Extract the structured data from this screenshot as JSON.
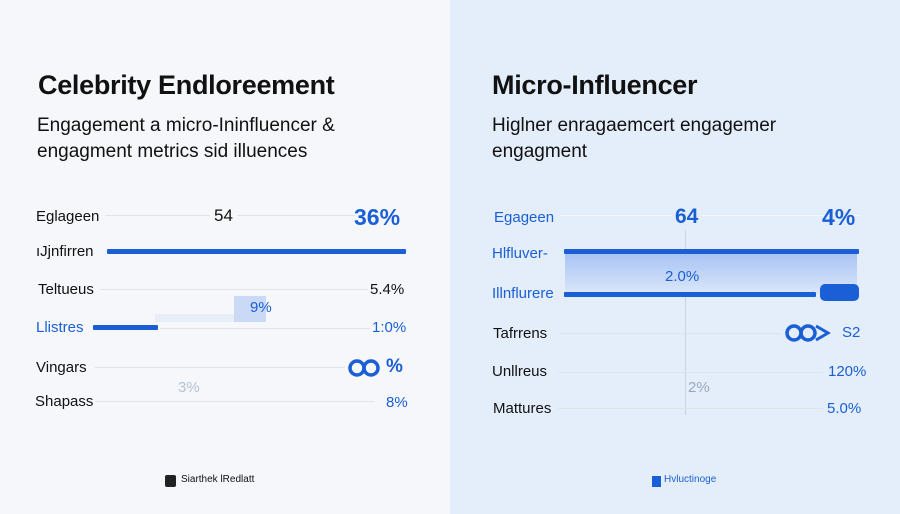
{
  "left": {
    "title": "Celebrity Endloreement",
    "subtitle_1": "Engagement a micro-Ininfluencer  &",
    "subtitle_2": "engagment metrics sid illuences",
    "rows": [
      {
        "label": "Eglageen",
        "mid": "54",
        "value": "36%"
      },
      {
        "label": "ıJjnfirren"
      },
      {
        "label": "Teltueus",
        "value": "5.4%"
      },
      {
        "label": "Llistres",
        "value": "1:0%",
        "bar_fraction": 0.2
      },
      {
        "label": "Vingars",
        "value": "%"
      },
      {
        "label": "Shapass",
        "value": "8%"
      }
    ],
    "floating_1": "9%",
    "floating_2": "3%",
    "footer": "Siarthek lRedlatt"
  },
  "right": {
    "title": "Micro-Influencer",
    "subtitle_1": "Higlner enragaemcert  engagemer",
    "subtitle_2": "engagment",
    "rows": [
      {
        "label": "Egageen",
        "mid": "64",
        "value": "4%"
      },
      {
        "label": "Hlfluver-"
      },
      {
        "label": "Illnflurere"
      },
      {
        "label": "Tafrrens",
        "value": "S2"
      },
      {
        "label": "Unllreus",
        "value": "120%"
      },
      {
        "label": "Mattures",
        "value": "5.0%"
      }
    ],
    "floating_1": "2.0%",
    "floating_2": "2%",
    "footer": "Hvluctinoge"
  },
  "colors": {
    "accent": "#1a5fd6",
    "left_bg": "#f6f7fb",
    "right_bg": "#e4eefb"
  }
}
